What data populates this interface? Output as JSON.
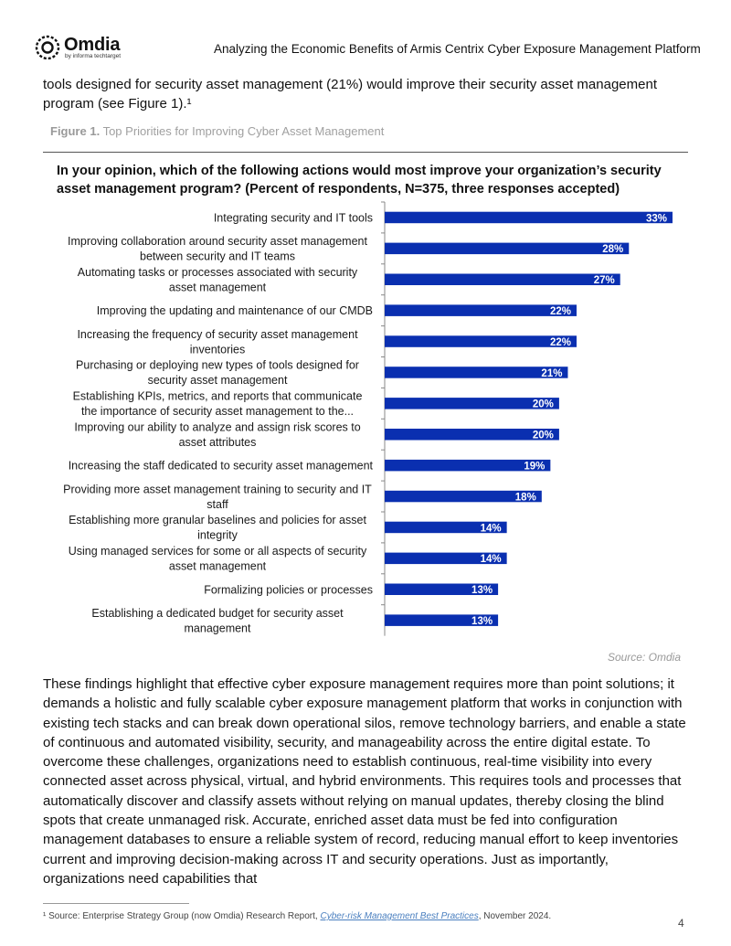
{
  "header": {
    "logo_name": "Omdia",
    "logo_tagline": "by informa techtarget",
    "document_title": "Analyzing the Economic Benefits of Armis Centrix Cyber Exposure Management Platform"
  },
  "intro_text": "tools designed for security asset management (21%) would improve their security asset management program (see Figure 1).¹",
  "figure": {
    "label": "Figure 1.",
    "title": "Top Priorities for Improving Cyber Asset Management",
    "question": "In your opinion, which of the following actions would most improve your organization’s security asset management program? (Percent of respondents, N=375, three responses accepted)",
    "source": "Source: Omdia"
  },
  "chart_data": {
    "type": "bar",
    "orientation": "horizontal",
    "bar_color": "#0a2fb0",
    "categories": [
      [
        "Integrating security and IT tools"
      ],
      [
        "Improving collaboration around security asset management",
        "between security and IT teams"
      ],
      [
        "Automating tasks or processes associated with security",
        "asset management"
      ],
      [
        "Improving the updating and maintenance of our CMDB"
      ],
      [
        "Increasing the frequency of security asset management",
        "inventories"
      ],
      [
        "Purchasing or deploying new types of tools designed for",
        "security asset management"
      ],
      [
        "Establishing KPIs, metrics, and reports that communicate",
        "the importance of security asset management to the..."
      ],
      [
        "Improving our ability to analyze and assign risk scores to",
        "asset attributes"
      ],
      [
        "Increasing the staff dedicated to security asset management"
      ],
      [
        "Providing more asset management training to security and IT",
        "staff"
      ],
      [
        "Establishing more granular baselines and policies for asset",
        "integrity"
      ],
      [
        "Using managed services for some or all aspects of security",
        "asset management"
      ],
      [
        "Formalizing policies or processes"
      ],
      [
        "Establishing a dedicated budget for security asset",
        "management"
      ]
    ],
    "values": [
      33,
      28,
      27,
      22,
      22,
      21,
      20,
      20,
      19,
      18,
      14,
      14,
      13,
      13
    ],
    "value_labels": [
      "33%",
      "28%",
      "27%",
      "22%",
      "22%",
      "21%",
      "20%",
      "20%",
      "19%",
      "18%",
      "14%",
      "14%",
      "13%",
      "13%"
    ],
    "xlim": [
      0,
      33
    ]
  },
  "body_text": "These findings highlight that effective cyber exposure management requires more than point solutions; it demands a holistic and fully scalable cyber exposure management platform that works in conjunction with existing tech stacks and can break down operational silos, remove technology barriers, and enable a state of continuous and automated visibility, security, and manageability across the entire digital estate. To overcome these challenges, organizations need to establish continuous, real-time visibility into every connected asset across physical, virtual, and hybrid environments. This requires tools and processes that automatically discover and classify assets without relying on manual updates, thereby closing the blind spots that create unmanaged risk. Accurate, enriched asset data must be fed into configuration management databases to ensure a reliable system of record, reducing manual effort to keep inventories current and improving decision-making across IT and security operations. Just as importantly, organizations need capabilities that",
  "footnote": {
    "marker": "¹",
    "prefix": "Source: Enterprise Strategy Group (now Omdia) Research Report, ",
    "link_text": "Cyber-risk Management Best Practices",
    "suffix": ", November 2024."
  },
  "page_number": "4"
}
